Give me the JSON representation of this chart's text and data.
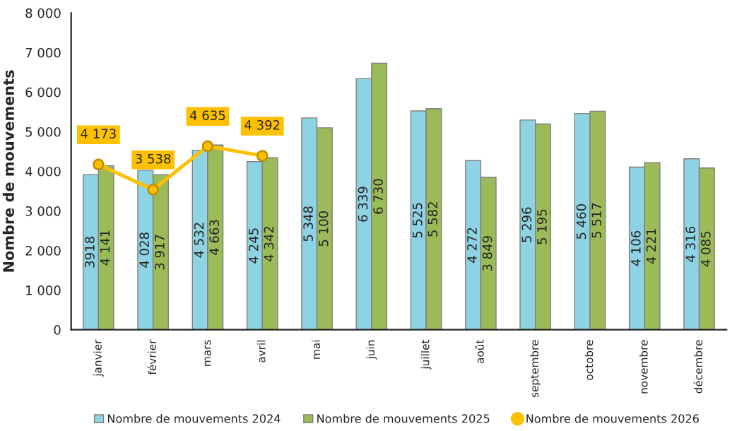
{
  "chart_data": {
    "type": "bar",
    "ylabel": "Nombre de mouvements",
    "categories": [
      "janvier",
      "février",
      "mars",
      "avril",
      "mai",
      "juin",
      "juillet",
      "août",
      "septembre",
      "octobre",
      "novembre",
      "décembre"
    ],
    "series": [
      {
        "name": "Nombre de mouvements 2024",
        "color": "#8ed3e3",
        "values": [
          3918,
          4028,
          4532,
          4245,
          5348,
          6339,
          5525,
          4272,
          5296,
          5460,
          4106,
          4316
        ],
        "value_labels": [
          "3918",
          "4 028",
          "4 532",
          "4 245",
          "5 348",
          "6 339",
          "5 525",
          "4 272",
          "5 296",
          "5 460",
          "4 106",
          "4 316"
        ]
      },
      {
        "name": "Nombre de mouvements 2025",
        "color": "#9bbb59",
        "values": [
          4141,
          3917,
          4663,
          4342,
          5100,
          6730,
          5582,
          3849,
          5195,
          5517,
          4221,
          4085
        ],
        "value_labels": [
          "4 141",
          "3 917",
          "4 663",
          "4 342",
          "5 100",
          "6 730",
          "5 582",
          "3 849",
          "5 195",
          "5 517",
          "4 221",
          "4 085"
        ]
      },
      {
        "name": "Nombre de mouvements 2026",
        "type": "line",
        "color": "#ffc000",
        "marker": "circle",
        "values": [
          4173,
          3538,
          4635,
          4392,
          null,
          null,
          null,
          null,
          null,
          null,
          null,
          null
        ],
        "value_labels": [
          "4 173",
          "3 538",
          "4 635",
          "4 392",
          null,
          null,
          null,
          null,
          null,
          null,
          null,
          null
        ]
      }
    ],
    "ylim": [
      0,
      8000
    ],
    "yticks": [
      0,
      {
        "value": 1000,
        "label": "1 000"
      },
      {
        "value": 2000,
        "label": "2 000"
      },
      {
        "value": 3000,
        "label": "3 000"
      },
      {
        "value": 4000,
        "label": "4 000"
      },
      {
        "value": 5000,
        "label": "5 000"
      },
      {
        "value": 6000,
        "label": "6 000"
      },
      {
        "value": 7000,
        "label": "7 000"
      },
      {
        "value": 8000,
        "label": "8 000"
      }
    ],
    "grid": false,
    "legend": "bottom"
  }
}
